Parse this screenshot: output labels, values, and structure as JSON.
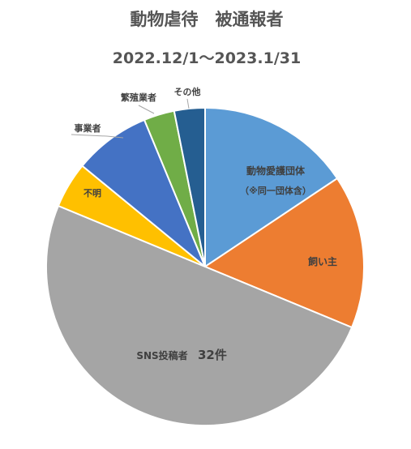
{
  "chart_data": {
    "type": "pie",
    "title": "動物虐待　被通報者",
    "subtitle": "2022.12/1〜2023.1/31",
    "slices": [
      {
        "label": "動物愛護団体",
        "sublabel": "（※同一団体含）",
        "value": 10,
        "color": "#5b9bd5"
      },
      {
        "label": "飼い主",
        "value": 10,
        "color": "#ed7d31"
      },
      {
        "label": "SNS投稿者",
        "data_label": "32件",
        "value": 32,
        "color": "#a5a5a5"
      },
      {
        "label": "不明",
        "value": 3,
        "color": "#ffc000"
      },
      {
        "label": "事業者",
        "value": 5,
        "color": "#4472c4"
      },
      {
        "label": "繁殖業者",
        "value": 2,
        "color": "#70ad47"
      },
      {
        "label": "その他",
        "value": 2,
        "color": "#255e91"
      }
    ]
  }
}
